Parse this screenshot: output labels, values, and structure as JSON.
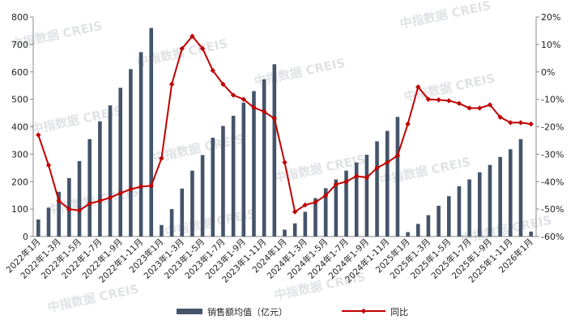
{
  "chart_data": {
    "type": "bar+line",
    "title": "",
    "watermark": "中指数据 CREIS",
    "left_axis": {
      "min": 0,
      "max": 800,
      "ticks": [
        0,
        100,
        200,
        300,
        400,
        500,
        600,
        700,
        800
      ]
    },
    "right_axis": {
      "min": -60,
      "max": 20,
      "ticks": [
        "-60%",
        "-50%",
        "-40%",
        "-30%",
        "-20%",
        "-10%",
        "0%",
        "10%",
        "20%"
      ]
    },
    "x_tick_labels": [
      "2022年1月",
      "2022年1-3月",
      "2022年1-5月",
      "2022年1-7月",
      "2022年1-9月",
      "2022年1-11月",
      "2023年1月",
      "2023年1-3月",
      "2023年1-5月",
      "2023年1-7月",
      "2023年1-9月",
      "2023年1-11月",
      "2024年1月",
      "2024年1-3月",
      "2024年1-5月",
      "2024年1-7月",
      "2024年1-9月",
      "2024年1-11月",
      "2025年1月",
      "2025年1-3月",
      "2025年1-5月",
      "2025年1-7月",
      "2025年1-9月",
      "2025年1-11月",
      "2026年1月"
    ],
    "series": [
      {
        "name": "销售额均值（亿元）",
        "type": "bar",
        "color": "#44546a",
        "values": [
          62,
          105,
          163,
          213,
          275,
          355,
          420,
          478,
          542,
          610,
          672,
          760,
          42,
          100,
          175,
          240,
          297,
          360,
          403,
          440,
          488,
          530,
          573,
          628,
          25,
          48,
          90,
          140,
          176,
          208,
          240,
          270,
          298,
          347,
          385,
          436,
          16,
          46,
          78,
          112,
          147,
          183,
          208,
          234,
          261,
          290,
          318,
          355,
          18
        ]
      },
      {
        "name": "同比",
        "type": "line",
        "axis": "right",
        "unit": "%",
        "color": "#c00000",
        "values": [
          -23,
          -34,
          -47,
          -50,
          -50.5,
          -48,
          -47,
          -45.8,
          -44.2,
          -42.8,
          -41.8,
          -41.5,
          -31.5,
          -4.5,
          8.5,
          13,
          8.5,
          0.5,
          -4.5,
          -8.5,
          -10,
          -13,
          -14.5,
          -17,
          -33,
          -51,
          -48.5,
          -47.5,
          -45,
          -41,
          -40,
          -38,
          -38.5,
          -35,
          -33,
          -30.5,
          -19,
          -5.5,
          -10,
          -10.2,
          -10.5,
          -11.5,
          -13.2,
          -13.2,
          -12,
          -16.5,
          -18.5,
          -18.5,
          -19
        ]
      }
    ],
    "legend": {
      "position": "bottom",
      "items": [
        "销售额均值（亿元）",
        "同比"
      ]
    },
    "grid": false
  }
}
